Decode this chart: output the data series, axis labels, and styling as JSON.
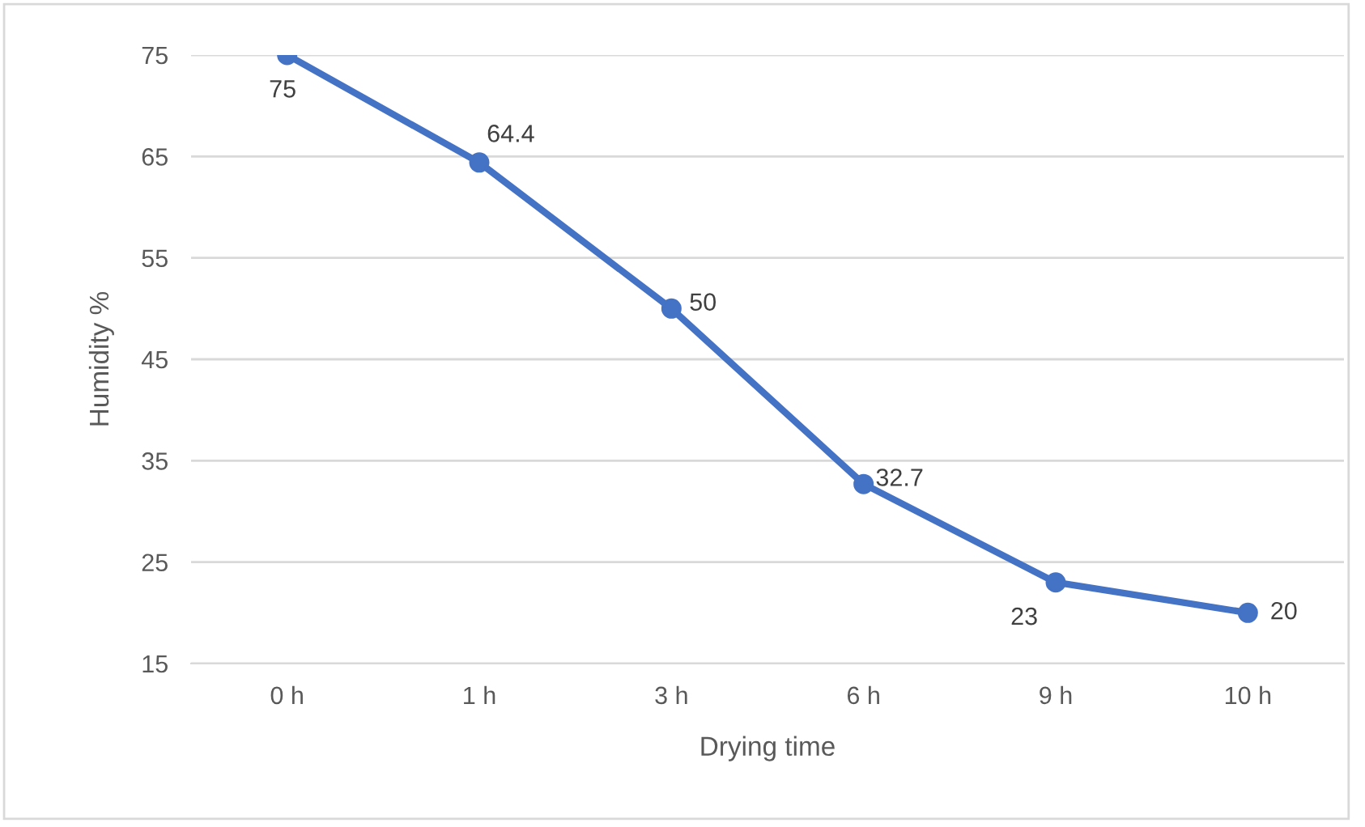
{
  "chart_data": {
    "type": "line",
    "xlabel": "Drying time",
    "ylabel": "Humidity %",
    "categories": [
      "0 h",
      "1 h",
      "3 h",
      "6 h",
      "9 h",
      "10 h"
    ],
    "series": [
      {
        "color": "#4472c4",
        "values": [
          75,
          64.4,
          50,
          32.7,
          23,
          20
        ]
      }
    ],
    "ylim": [
      15,
      75
    ],
    "yticks": [
      15,
      25,
      35,
      45,
      55,
      65,
      75
    ],
    "grid": "y",
    "marker": "circle",
    "line_style": "solid",
    "data_labels": true,
    "legend": false
  }
}
